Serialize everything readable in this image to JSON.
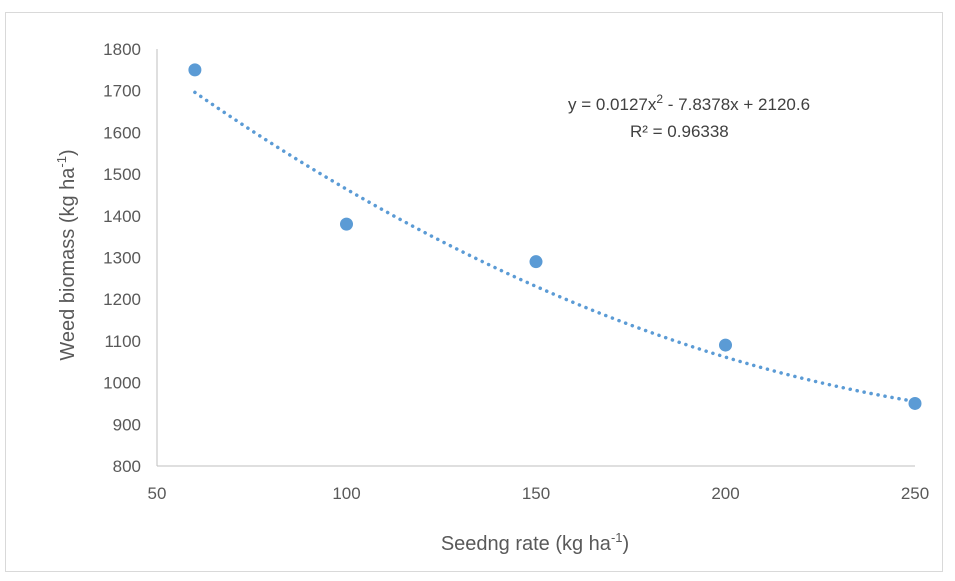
{
  "chart_data": {
    "type": "scatter",
    "xlabel": "Seedng rate (kg ha",
    "xlabel_sup": "-1",
    "xlabel_end": ")",
    "ylabel": "Weed biomass (kg ha",
    "ylabel_sup": "-1",
    "ylabel_end": ")",
    "xlim": [
      50,
      250
    ],
    "ylim": [
      800,
      1800
    ],
    "xticks": [
      50,
      100,
      150,
      200,
      250
    ],
    "yticks": [
      800,
      900,
      1000,
      1100,
      1200,
      1300,
      1400,
      1500,
      1600,
      1700,
      1800
    ],
    "series": [
      {
        "x": [
          60,
          100,
          150,
          200,
          250
        ],
        "y": [
          1750,
          1380,
          1290,
          1090,
          950
        ],
        "color": "#5b9bd5"
      }
    ],
    "trendline": {
      "type": "polynomial",
      "style": "dotted",
      "coefficients": [
        0.0127,
        -7.8378,
        2120.6
      ],
      "x_range": [
        60,
        250
      ],
      "color": "#5b9bd5"
    },
    "equation": {
      "prefix": "y = 0.0127x",
      "sup": "2",
      "suffix": " - 7.8378x + 2120.6",
      "r2_label": "R² = 0.96338"
    },
    "grid": false
  }
}
